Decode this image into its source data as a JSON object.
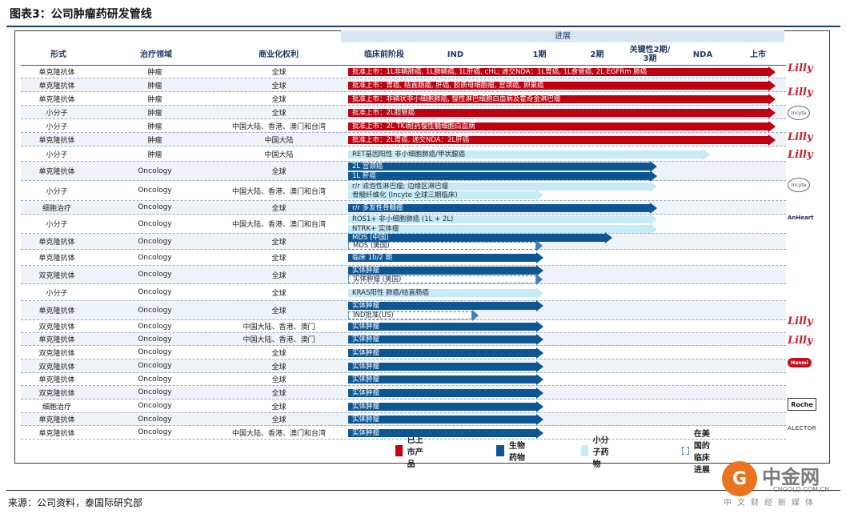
{
  "title": "图表3：公司肿瘤药研发管线",
  "header": {
    "progress_label": "进展",
    "columns": [
      "形式",
      "治疗领域",
      "商业化权利",
      "临床前阶段",
      "IND",
      "1期",
      "2期",
      "关键性2期/\n3期",
      "NDA",
      "上市"
    ]
  },
  "rows": [
    {
      "form": "单克隆抗体",
      "area": "肿瘤",
      "rights": "全球",
      "bars": [
        {
          "kind": "red",
          "label": "批准上市：1L非鳞肺癌, 1L肺鳞癌, 1L肝癌, cHL; 递交NDA：1L胃癌, 1L食管癌, 2L EGFRm 肺癌",
          "stage": "上市"
        }
      ]
    },
    {
      "form": "单克隆抗体",
      "area": "肿瘤",
      "rights": "全球",
      "bars": [
        {
          "kind": "red",
          "label": "批准上市：胃癌, 结直肠癌, 肝癌, 胶质母细胞瘤, 宫颈癌, 卵巢癌",
          "stage": "上市"
        }
      ]
    },
    {
      "form": "单克隆抗体",
      "area": "肿瘤",
      "rights": "全球",
      "bars": [
        {
          "kind": "red",
          "label": "批准上市：非鳞状非小细胞肺癌, 慢性淋巴细胞白血病及霍奇金淋巴瘤",
          "stage": "上市"
        }
      ]
    },
    {
      "form": "小分子",
      "area": "肿瘤",
      "rights": "全球",
      "bars": [
        {
          "kind": "red",
          "label": "批准上市：2L胆管癌",
          "stage": "上市"
        }
      ]
    },
    {
      "form": "小分子",
      "area": "肿瘤",
      "rights": "中国大陆、香港、澳门和台湾",
      "bars": [
        {
          "kind": "red",
          "label": "批准上市：2L TKI耐药慢性髓细胞白血病",
          "stage": "上市"
        }
      ]
    },
    {
      "form": "单克隆抗体",
      "area": "肿瘤",
      "rights": "中国大陆",
      "bars": [
        {
          "kind": "red",
          "label": "批准上市：2L胃癌, 递交NDA：2L肝癌",
          "stage": "上市"
        }
      ]
    },
    {
      "form": "小分子",
      "area": "肿瘤",
      "rights": "中国大陆",
      "bars": [
        {
          "kind": "light",
          "label": "RET基因阳性 非小细胞肺癌/甲状腺癌",
          "stage": "NDA"
        }
      ]
    },
    {
      "form": "单克隆抗体",
      "area": "Oncology",
      "rights": "全球",
      "bars": [
        {
          "kind": "dark",
          "label": "2L 宫颈癌",
          "stage": "关键性2期"
        },
        {
          "kind": "dark",
          "label": "1L 肝癌",
          "stage": "关键性2期"
        }
      ]
    },
    {
      "form": "小分子",
      "area": "Oncology",
      "rights": "中国大陆、香港、澳门和台湾",
      "bars": [
        {
          "kind": "light",
          "label": "r/r 滤泡性淋巴瘤; 边缘区淋巴瘤",
          "stage": "关键性2期"
        },
        {
          "kind": "light",
          "label": "骨髓纤维化 (Incyte 全球三期临床)",
          "stage": "1期"
        }
      ]
    },
    {
      "form": "细胞治疗",
      "area": "Oncology",
      "rights": "全球",
      "bars": [
        {
          "kind": "dark",
          "label": "r/r 多发性骨髓瘤",
          "stage": "关键性2期"
        }
      ]
    },
    {
      "form": "小分子",
      "area": "Oncology",
      "rights": "中国大陆、香港、澳门和台湾",
      "bars": [
        {
          "kind": "light",
          "label": "ROS1+ 非小细胞肺癌 (1L + 2L)",
          "stage": "关键性2期"
        },
        {
          "kind": "light",
          "label": "NTRK+ 实体瘤",
          "stage": "关键性2期"
        }
      ]
    },
    {
      "form": "单克隆抗体",
      "area": "Oncology",
      "rights": "全球",
      "bars": [
        {
          "kind": "dark",
          "label": "MDS (中国)",
          "stage": "2期"
        },
        {
          "kind": "outline",
          "label": "MDS (美国)",
          "stage": "1期"
        }
      ]
    },
    {
      "form": "单克隆抗体",
      "area": "Oncology",
      "rights": "全球",
      "bars": [
        {
          "kind": "dark",
          "label": "临床 1b/2 期",
          "stage": "1期"
        }
      ]
    },
    {
      "form": "双克隆抗体",
      "area": "Oncology",
      "rights": "全球",
      "bars": [
        {
          "kind": "dark",
          "label": "实体肿瘤",
          "stage": "1期"
        },
        {
          "kind": "outline",
          "label": "实体肿瘤 (美国)",
          "stage": "1期"
        }
      ]
    },
    {
      "form": "小分子",
      "area": "Oncology",
      "rights": "全球",
      "bars": [
        {
          "kind": "light",
          "label": "KRAS阳性 肺癌/结直肠癌",
          "stage": "1期"
        }
      ]
    },
    {
      "form": "单克隆抗体",
      "area": "Oncology",
      "rights": "全球",
      "bars": [
        {
          "kind": "dark",
          "label": "实体肿瘤",
          "stage": "1期"
        },
        {
          "kind": "outline",
          "label": "IND批准(US)",
          "stage": "IND"
        }
      ]
    },
    {
      "form": "双克隆抗体",
      "area": "Oncology",
      "rights": "中国大陆、香港、澳门",
      "bars": [
        {
          "kind": "dark",
          "label": "实体肿瘤",
          "stage": "1期"
        }
      ]
    },
    {
      "form": "单克隆抗体",
      "area": "Oncology",
      "rights": "中国大陆、香港、澳门",
      "bars": [
        {
          "kind": "dark",
          "label": "实体肿瘤",
          "stage": "1期"
        }
      ]
    },
    {
      "form": "双克隆抗体",
      "area": "Oncology",
      "rights": "全球",
      "bars": [
        {
          "kind": "dark",
          "label": "实体肿瘤",
          "stage": "1期"
        }
      ]
    },
    {
      "form": "双克隆抗体",
      "area": "Oncology",
      "rights": "全球",
      "bars": [
        {
          "kind": "dark",
          "label": "实体肿瘤",
          "stage": "1期"
        }
      ]
    },
    {
      "form": "单克隆抗体",
      "area": "Oncology",
      "rights": "全球",
      "bars": [
        {
          "kind": "dark",
          "label": "实体肿瘤",
          "stage": "1期"
        }
      ]
    },
    {
      "form": "双克隆抗体",
      "area": "Oncology",
      "rights": "全球",
      "bars": [
        {
          "kind": "dark",
          "label": "实体肿瘤",
          "stage": "1期"
        }
      ]
    },
    {
      "form": "细胞治疗",
      "area": "Oncology",
      "rights": "全球",
      "bars": [
        {
          "kind": "dark",
          "label": "实体肿瘤",
          "stage": "1期"
        }
      ]
    },
    {
      "form": "单克隆抗体",
      "area": "Oncology",
      "rights": "全球",
      "bars": [
        {
          "kind": "dark",
          "label": "实体肿瘤",
          "stage": "1期"
        }
      ]
    },
    {
      "form": "单克隆抗体",
      "area": "Oncology",
      "rights": "中国大陆、香港、澳门和台湾",
      "bars": [
        {
          "kind": "dark",
          "label": "实体肿瘤",
          "stage": "1期"
        }
      ]
    }
  ],
  "partner_logos": [
    {
      "name": "Lilly",
      "type": "lilly"
    },
    {
      "name": "Lilly",
      "type": "lilly"
    },
    {
      "name": "Incyte",
      "type": "incyte"
    },
    {
      "name": "Lilly",
      "type": "lilly"
    },
    {
      "name": "Lilly",
      "type": "lilly"
    },
    {
      "name": "Incyte",
      "type": "incyte"
    },
    {
      "name": "AnHeart",
      "type": "anheart"
    },
    {
      "name": "Lilly",
      "type": "lilly"
    },
    {
      "name": "Lilly",
      "type": "lilly"
    },
    {
      "name": "Hanmi",
      "type": "hanmi"
    },
    {
      "name": "Roche",
      "type": "roche"
    },
    {
      "name": "ALECTOR",
      "type": "alector"
    }
  ],
  "legend": [
    {
      "label": "已上市产品",
      "color": "#c0000f"
    },
    {
      "label": "生物药物",
      "color": "#0d5694"
    },
    {
      "label": "小分子药物",
      "color": "#c7eaf7"
    },
    {
      "label": "在美国的临床进展",
      "color": "outline"
    }
  ],
  "source": "来源：公司资料，泰国际研究部",
  "watermark": {
    "mark": "G",
    "name": "中金网",
    "url": "CNGOLD.COM.CN",
    "tagline": "中文财经新媒体"
  }
}
